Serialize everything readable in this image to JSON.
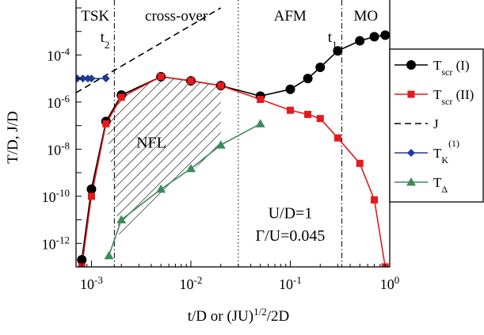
{
  "chart_data": {
    "type": "line",
    "x_scale": "log",
    "y_scale": "log",
    "xlim": [
      0.0007,
      1.0
    ],
    "ylim": [
      1e-13,
      0.01
    ],
    "xlabel": {
      "main": "t/D or (JU)",
      "sup": "1/2",
      "tail": "/2D"
    },
    "ylabel": "T/D, J/D",
    "x_ticks": [
      {
        "value": 0.001,
        "base": "10",
        "exp": "-3"
      },
      {
        "value": 0.01,
        "base": "10",
        "exp": "-2"
      },
      {
        "value": 0.1,
        "base": "10",
        "exp": "-1"
      },
      {
        "value": 1.0,
        "base": "10",
        "exp": "0"
      }
    ],
    "y_ticks": [
      {
        "value": 1e-12,
        "base": "10",
        "exp": "-12"
      },
      {
        "value": 1e-10,
        "base": "10",
        "exp": "-10"
      },
      {
        "value": 1e-08,
        "base": "10",
        "exp": "-8"
      },
      {
        "value": 1e-06,
        "base": "10",
        "exp": "-6"
      },
      {
        "value": 0.0001,
        "base": "10",
        "exp": "-4"
      }
    ],
    "regions": [
      {
        "label": "TSK",
        "x_from": 0.0007,
        "x_to": 0.0017
      },
      {
        "label": "cross-over",
        "x_from": 0.0017,
        "x_to": 0.03
      },
      {
        "label": "AFM",
        "x_from": 0.03,
        "x_to": 0.33
      },
      {
        "label": "MO",
        "x_from": 0.33,
        "x_to": 1.0
      }
    ],
    "vlines": [
      {
        "x": 0.0017,
        "style": "dashdot",
        "label_main": "t",
        "label_sub": "2"
      },
      {
        "x": 0.03,
        "style": "dotted"
      },
      {
        "x": 0.33,
        "style": "dashdot",
        "label_main": "t",
        "label_sub": "1"
      }
    ],
    "annotations": [
      {
        "text": "NFL",
        "x": 0.004,
        "y": 2e-08
      },
      {
        "text": "U/D=1",
        "x": 0.1,
        "y": 2e-11
      },
      {
        "text": "Γ/U=0.045",
        "x": 0.1,
        "y": 2.2e-12
      }
    ],
    "nfl_region": {
      "upper": [
        [
          0.0014,
          1.5e-07
        ],
        [
          0.002,
          2e-06
        ],
        [
          0.005,
          1.2e-05
        ],
        [
          0.01,
          8e-06
        ],
        [
          0.02,
          5e-06
        ]
      ],
      "lower": [
        [
          0.02,
          1.5e-08
        ],
        [
          0.0019,
          2e-12
        ]
      ]
    },
    "series": [
      {
        "name": "T",
        "sub": "scr",
        "label_tail": " (I)",
        "color": "#000000",
        "marker": "circle",
        "line": "solid",
        "x": [
          0.0008,
          0.001,
          0.0014,
          0.002,
          0.005,
          0.01,
          0.02,
          0.05,
          0.1,
          0.15,
          0.2,
          0.3,
          0.5,
          0.7,
          0.9
        ],
        "y": [
          2e-13,
          2e-10,
          1.5e-07,
          2e-06,
          1.2e-05,
          8e-06,
          5e-06,
          1.8e-06,
          3.5e-06,
          1e-05,
          3e-05,
          0.00015,
          0.0004,
          0.0006,
          0.0007
        ]
      },
      {
        "name": "T",
        "sub": "scr",
        "label_tail": " (II)",
        "color": "#e41a1c",
        "marker": "square",
        "line": "solid",
        "x": [
          0.0008,
          0.001,
          0.0014,
          0.002,
          0.005,
          0.01,
          0.02,
          0.05,
          0.1,
          0.15,
          0.2,
          0.3,
          0.5,
          0.7,
          0.9
        ],
        "y": [
          1e-13,
          1e-10,
          1.2e-07,
          1.6e-06,
          1.2e-05,
          8e-06,
          5e-06,
          1.3e-06,
          4.5e-07,
          3e-07,
          2e-07,
          3e-08,
          2.5e-09,
          7e-11,
          1e-13
        ]
      },
      {
        "name": "J",
        "sub": "",
        "label_tail": "",
        "color": "#000000",
        "marker": "none",
        "line": "dashed",
        "x": [
          0.0007,
          0.02
        ],
        "y": [
          2.5e-06,
          0.01
        ]
      },
      {
        "name": "T",
        "sub": "K",
        "label_tail": "",
        "sup": "(1)",
        "color": "#1f3a9e",
        "marker": "diamond",
        "line": "solid",
        "x": [
          0.00072,
          0.00082,
          0.00092,
          0.001,
          0.0014
        ],
        "y": [
          1e-05,
          1e-05,
          1e-05,
          1e-05,
          1e-05
        ]
      },
      {
        "name": "T",
        "sub": "Δ",
        "label_tail": "",
        "color": "#3c8a5c",
        "marker": "triangle",
        "line": "solid",
        "x": [
          0.0015,
          0.002,
          0.005,
          0.01,
          0.02,
          0.05
        ],
        "y": [
          3e-13,
          1e-11,
          2e-10,
          1.5e-09,
          1.5e-08,
          1.2e-07
        ]
      }
    ],
    "legend_position": "top-right, outside"
  }
}
